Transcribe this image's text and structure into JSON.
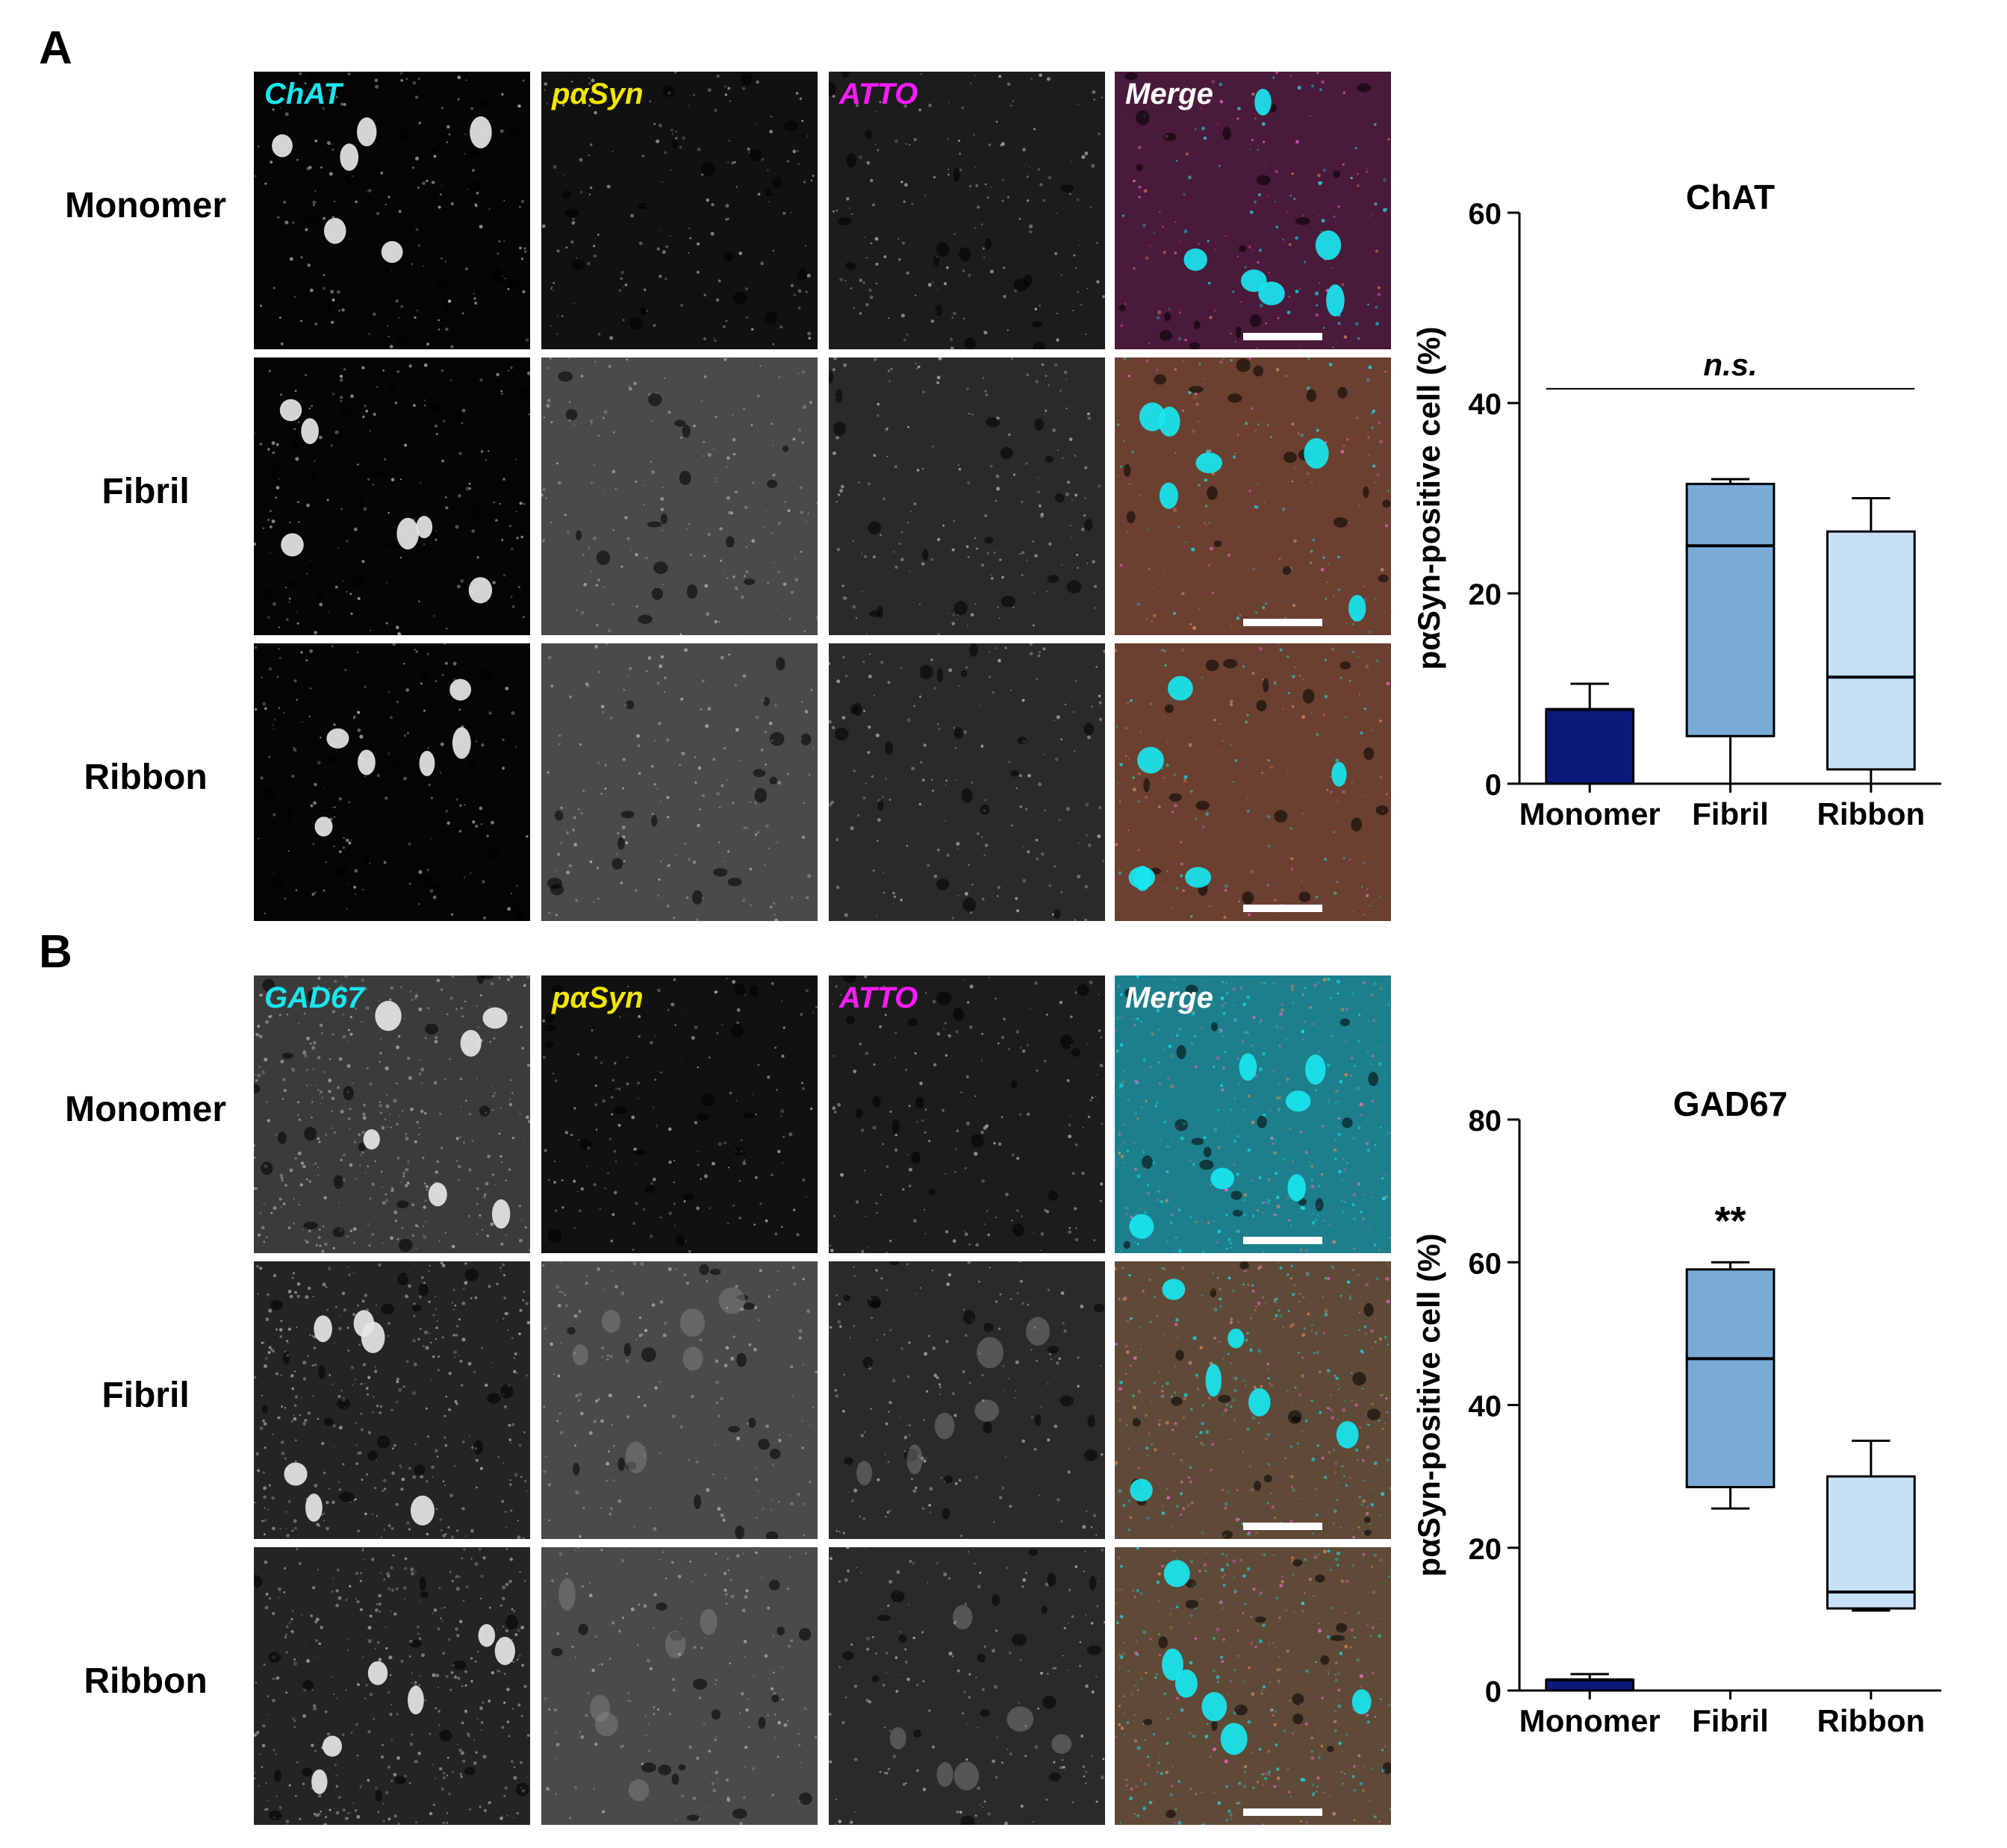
{
  "figure": {
    "panels": [
      {
        "letter": "A",
        "channels": [
          "ChAT",
          "pαSyn",
          "ATTO",
          "Merge"
        ],
        "rows": [
          "Monomer",
          "Fibril",
          "Ribbon"
        ]
      },
      {
        "letter": "B",
        "channels": [
          "GAD67",
          "pαSyn",
          "ATTO",
          "Merge"
        ],
        "rows": [
          "Monomer",
          "Fibril",
          "Ribbon"
        ]
      }
    ]
  },
  "colors": {
    "cyan": "#19e6f0",
    "yellow": "#f2e600",
    "magenta": "#ff1aff",
    "white": "#ffffff",
    "monomer_fill": "#0b1a7a",
    "fibril_fill": "#7aaad6",
    "ribbon_fill": "#c8e0f6"
  },
  "chart_data": [
    {
      "type": "box",
      "title": "ChAT",
      "ylabel": "pαSyn-positive cell (%)",
      "xlabel": "",
      "ylim": [
        0,
        60
      ],
      "yticks": [
        0,
        20,
        40,
        60
      ],
      "categories": [
        "Monomer",
        "Fibril",
        "Ribbon"
      ],
      "boxes": [
        {
          "name": "Monomer",
          "min": 0,
          "q1": 0,
          "median": 7.8,
          "q3": 7.8,
          "max": 10.5
        },
        {
          "name": "Fibril",
          "min": 0,
          "q1": 5,
          "median": 25,
          "q3": 31.5,
          "max": 32
        },
        {
          "name": "Ribbon",
          "min": 0,
          "q1": 1.5,
          "median": 11.2,
          "q3": 26.5,
          "max": 30
        }
      ],
      "annotations": [
        {
          "text": "n.s.",
          "type": "bracket",
          "y": 41.5
        }
      ]
    },
    {
      "type": "box",
      "title": "GAD67",
      "ylabel": "pαSyn-positive cell (%)",
      "xlabel": "",
      "ylim": [
        0,
        80
      ],
      "yticks": [
        0,
        20,
        40,
        60,
        80
      ],
      "categories": [
        "Monomer",
        "Fibril",
        "Ribbon"
      ],
      "boxes": [
        {
          "name": "Monomer",
          "min": 0,
          "q1": 0,
          "median": 1.5,
          "q3": 1.5,
          "max": 2.3
        },
        {
          "name": "Fibril",
          "min": 25.5,
          "q1": 28.5,
          "median": 46.5,
          "q3": 59,
          "max": 60
        },
        {
          "name": "Ribbon",
          "min": 11.2,
          "q1": 11.5,
          "median": 13.8,
          "q3": 30,
          "max": 35
        }
      ],
      "annotations": [
        {
          "text": "**",
          "type": "star",
          "category": "Fibril",
          "y": 66
        }
      ]
    }
  ]
}
